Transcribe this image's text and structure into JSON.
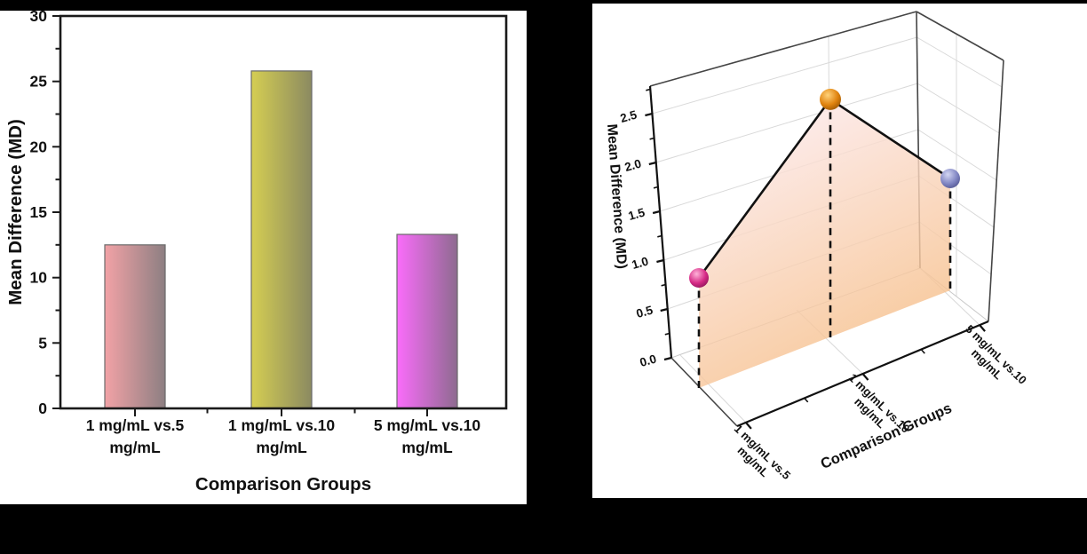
{
  "chart_data": [
    {
      "type": "bar",
      "panel": "left",
      "title": "",
      "categories": [
        "1 mg/mL vs.5 mg/mL",
        "1 mg/mL vs.10 mg/mL",
        "5 mg/mL vs.10 mg/mL"
      ],
      "cat_l1": [
        "1 mg/mL vs.5",
        "1 mg/mL vs.10",
        "5 mg/mL vs.10"
      ],
      "cat_l2": [
        "mg/mL",
        "mg/mL",
        "mg/mL"
      ],
      "values": [
        12.5,
        25.8,
        13.3
      ],
      "xlabel": "Comparison Groups",
      "ylabel": "Mean Difference (MD)",
      "ylim": [
        0,
        30
      ],
      "ytick_step_major": 5,
      "ytick_step_minor": 2.5,
      "yticks": [
        "0",
        "5",
        "10",
        "15",
        "20",
        "25",
        "30"
      ],
      "grid": "off",
      "bar_gradients": [
        {
          "from": "#f2a2a6",
          "to": "#8d7f82"
        },
        {
          "from": "#d5ce52",
          "to": "#8b8a61"
        },
        {
          "from": "#fa6cfa",
          "to": "#8e6b90"
        }
      ],
      "bar_outline": "#6a6a6a",
      "frame_color": "#1a1a1a"
    },
    {
      "type": "scatter",
      "panel": "right",
      "projection": "3d-trajectory",
      "title": "",
      "categories": [
        "1 mg/mL vs.5 mg/mL",
        "1 mg/mL vs.10 mg/mL",
        "5 mg/mL vs.10 mg/mL"
      ],
      "cat_l1": [
        "1 mg/mL vs.5",
        "1 mg/mL vs.10",
        "5 mg/mL vs.10"
      ],
      "cat_l2": [
        "mg/mL",
        "mg/mL",
        "mg/mL"
      ],
      "values": [
        1.25,
        2.58,
        1.33
      ],
      "xlabel": "Comparison Groups",
      "zlabel": "Mean Difference (MD)",
      "zlim": [
        0,
        2.5
      ],
      "ztick_step_major": 0.5,
      "zticks": [
        "0.0",
        "0.5",
        "1.0",
        "1.5",
        "2.0",
        "2.5"
      ],
      "grid": "on",
      "drop_line_style": "dashed",
      "connector_color": "#111111",
      "point_gradients": [
        {
          "light": "#ffb3d9",
          "mid": "#d62a86",
          "dark": "#7c1050"
        },
        {
          "light": "#ffd27a",
          "mid": "#e0830f",
          "dark": "#8a4c00"
        },
        {
          "light": "#d3d6f2",
          "mid": "#8287c4",
          "dark": "#474b85"
        }
      ],
      "surface_gradient": {
        "from": "#fdeef7",
        "to": "#f6bd85"
      }
    }
  ]
}
